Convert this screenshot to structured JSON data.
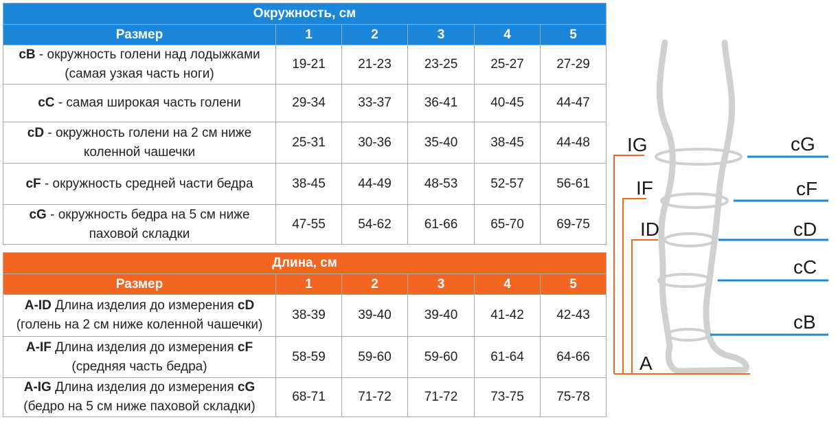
{
  "circumference": {
    "title": "Окружность, см",
    "size_label": "Размер",
    "sizes": [
      "1",
      "2",
      "3",
      "4",
      "5"
    ],
    "rows": [
      {
        "code": "cB",
        "text": " - окружность голени над лодыжками",
        "line2": "(самая узкая часть ноги)",
        "values": [
          "19-21",
          "21-23",
          "23-25",
          "25-27",
          "27-29"
        ]
      },
      {
        "code": "cC",
        "text": " - самая широкая часть голени",
        "line2": "",
        "values": [
          "29-34",
          "33-37",
          "36-41",
          "40-45",
          "44-47"
        ]
      },
      {
        "code": "cD",
        "text": " - окружность голени на 2 см ниже",
        "line2": "коленной чашечки",
        "values": [
          "25-31",
          "30-36",
          "35-40",
          "38-45",
          "44-48"
        ]
      },
      {
        "code": "cF",
        "text": " - окружность средней части бедра",
        "line2": "",
        "values": [
          "38-45",
          "44-49",
          "48-53",
          "52-57",
          "56-61"
        ]
      },
      {
        "code": "cG",
        "text": " - окружность бедра на 5 см ниже",
        "line2": "паховой складки",
        "values": [
          "47-55",
          "54-62",
          "61-66",
          "65-70",
          "69-75"
        ]
      }
    ]
  },
  "length": {
    "title": "Длина, см",
    "size_label": "Размер",
    "sizes": [
      "1",
      "2",
      "3",
      "4",
      "5"
    ],
    "rows": [
      {
        "code": "A-ID",
        "text": " Длина изделия до измерения ",
        "code2": "cD",
        "line2": "(голень на 2 см ниже коленной чашечки)",
        "values": [
          "38-39",
          "39-40",
          "39-40",
          "41-42",
          "42-43"
        ]
      },
      {
        "code": "A-IF",
        "text": " Длина изделия до измерения ",
        "code2": "cF",
        "line2": "(средняя часть бедра)",
        "values": [
          "58-59",
          "59-60",
          "59-60",
          "61-64",
          "64-66"
        ]
      },
      {
        "code": "A-IG",
        "text": " Длина изделия до измерения ",
        "code2": "cG",
        "line2": "(бедро на 5 см ниже паховой складки)",
        "values": [
          "68-71",
          "71-72",
          "71-72",
          "73-75",
          "75-78"
        ]
      }
    ]
  },
  "diagram": {
    "left_labels": [
      "IG",
      "IF",
      "ID",
      "A"
    ],
    "right_labels": [
      "cG",
      "cF",
      "cD",
      "cC",
      "cB"
    ],
    "colors": {
      "leg": "#d0d0d0",
      "orange": "#f26522",
      "blue": "#1c87d8"
    }
  }
}
